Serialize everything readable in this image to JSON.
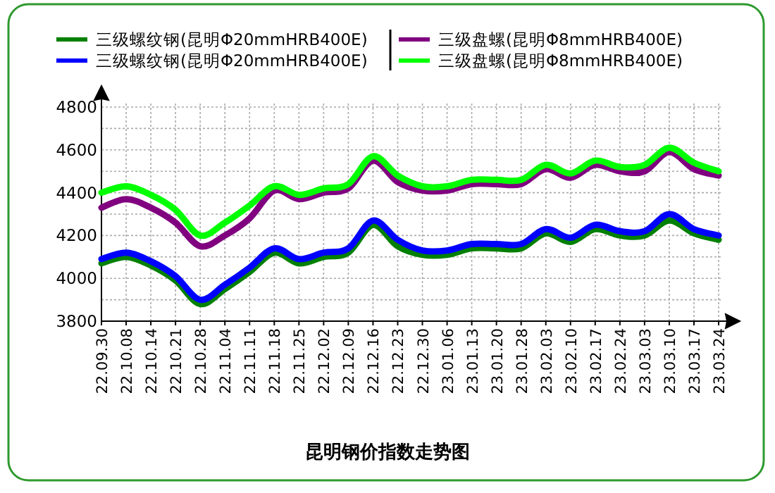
{
  "chart_data": {
    "type": "line",
    "title": "昆明钢价指数走势图",
    "categories": [
      "22.09.30",
      "22.10.08",
      "22.10.14",
      "22.10.21",
      "22.10.28",
      "22.11.04",
      "22.11.11",
      "22.11.18",
      "22.11.25",
      "22.12.02",
      "22.12.09",
      "22.12.16",
      "22.12.23",
      "22.12.30",
      "23.01.06",
      "23.01.13",
      "23.01.20",
      "23.01.28",
      "23.02.03",
      "23.02.10",
      "23.02.17",
      "23.02.24",
      "23.03.03",
      "23.03.10",
      "23.03.17",
      "23.03.24"
    ],
    "series": [
      {
        "name": "三级螺纹钢(昆明Φ20mmHRB400E)",
        "color": "#008000",
        "values": [
          4070,
          4100,
          4060,
          3990,
          3880,
          3950,
          4030,
          4120,
          4070,
          4100,
          4120,
          4250,
          4150,
          4110,
          4110,
          4140,
          4140,
          4140,
          4210,
          4170,
          4230,
          4200,
          4200,
          4270,
          4210,
          4180
        ]
      },
      {
        "name": "三级螺纹钢(昆明Φ20mmHRB400E)",
        "color": "#0000ff",
        "values": [
          4090,
          4120,
          4080,
          4010,
          3900,
          3970,
          4050,
          4140,
          4090,
          4120,
          4140,
          4270,
          4180,
          4130,
          4130,
          4160,
          4160,
          4160,
          4230,
          4190,
          4250,
          4220,
          4220,
          4300,
          4230,
          4200
        ]
      },
      {
        "name": "三级盘螺(昆明Φ8mmHRB400E)",
        "color": "#800080",
        "values": [
          4330,
          4370,
          4330,
          4260,
          4150,
          4200,
          4280,
          4410,
          4370,
          4400,
          4420,
          4550,
          4450,
          4410,
          4410,
          4440,
          4440,
          4440,
          4510,
          4470,
          4530,
          4500,
          4500,
          4590,
          4510,
          4480
        ]
      },
      {
        "name": "三级盘螺(昆明Φ8mmHRB400E)",
        "color": "#00ff00",
        "values": [
          4400,
          4430,
          4390,
          4320,
          4200,
          4260,
          4340,
          4430,
          4390,
          4420,
          4440,
          4570,
          4480,
          4430,
          4430,
          4460,
          4460,
          4460,
          4530,
          4490,
          4550,
          4520,
          4530,
          4610,
          4540,
          4500
        ]
      }
    ],
    "ylim": [
      3800,
      4800
    ],
    "yticks": [
      3800,
      {
        "value": 3900,
        "label": null
      },
      4000,
      {
        "value": 4100,
        "label": null
      },
      4200,
      {
        "value": 4300,
        "label": null
      },
      4400,
      {
        "value": 4500,
        "label": null
      },
      4600,
      {
        "value": 4700,
        "label": null
      },
      4800
    ],
    "grid": true,
    "legend": "top"
  }
}
